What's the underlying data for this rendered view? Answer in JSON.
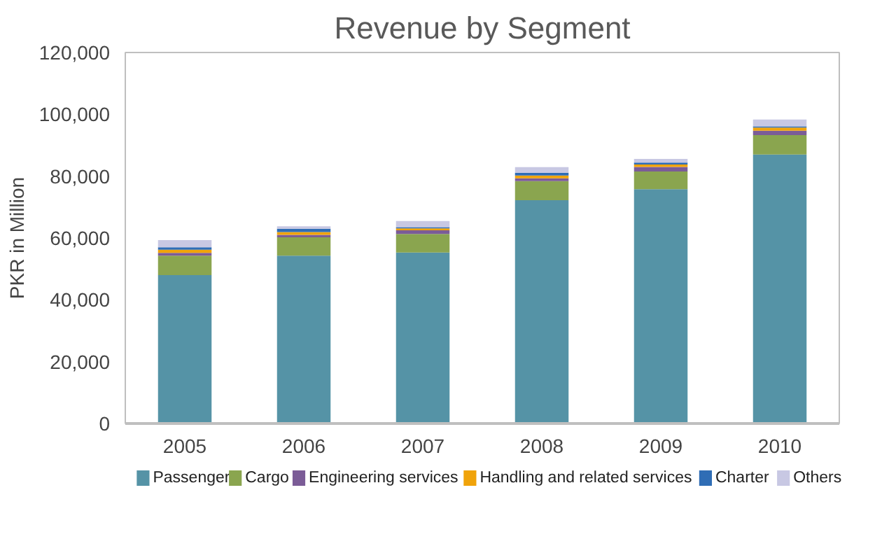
{
  "chart_data": {
    "type": "bar",
    "stacked": true,
    "title": "Revenue by Segment",
    "ylabel": "PKR in Million",
    "categories": [
      "2005",
      "2006",
      "2007",
      "2008",
      "2009",
      "2010"
    ],
    "series": [
      {
        "name": "Passenger",
        "color": "#5593a6",
        "values": [
          48000,
          54300,
          55300,
          72200,
          75800,
          87000
        ]
      },
      {
        "name": "Cargo",
        "color": "#8aa54f",
        "values": [
          6300,
          5900,
          6000,
          6200,
          5700,
          6300
        ]
      },
      {
        "name": "Engineering services",
        "color": "#7b5c97",
        "values": [
          900,
          800,
          1200,
          900,
          1500,
          1400
        ]
      },
      {
        "name": "Handling and related services",
        "color": "#f0a30a",
        "values": [
          1000,
          900,
          600,
          900,
          800,
          1000
        ]
      },
      {
        "name": "Charter",
        "color": "#2f6db5",
        "values": [
          800,
          1100,
          400,
          900,
          600,
          400
        ]
      },
      {
        "name": "Others",
        "color": "#c8c8e3",
        "values": [
          2300,
          800,
          2000,
          1800,
          1200,
          2200
        ]
      }
    ],
    "ylim": [
      0,
      120000
    ],
    "yticks": [
      {
        "value": 0,
        "label": "0"
      },
      {
        "value": 20000,
        "label": "20,000"
      },
      {
        "value": 40000,
        "label": "40,000"
      },
      {
        "value": 60000,
        "label": "60,000"
      },
      {
        "value": 80000,
        "label": "80,000"
      },
      {
        "value": 100000,
        "label": "100,000"
      },
      {
        "value": 120000,
        "label": "120,000"
      }
    ],
    "grid": false,
    "legend": "bottom"
  }
}
